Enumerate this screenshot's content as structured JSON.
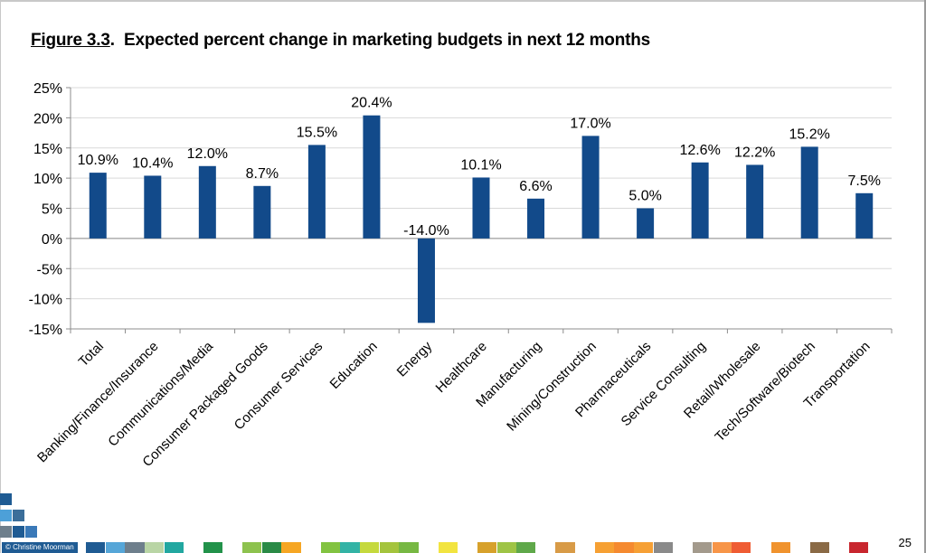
{
  "figure": {
    "label": "Figure 3.3",
    "title": "Expected percent change in marketing budgets in next 12 months"
  },
  "chart_data": {
    "type": "bar",
    "title": "Figure 3.3.  Expected percent change in marketing budgets in next 12 months",
    "xlabel": "",
    "ylabel": "",
    "ylim": [
      -15,
      25
    ],
    "yticks": [
      25,
      20,
      15,
      10,
      5,
      0,
      -5,
      -10,
      -15
    ],
    "ytick_labels": [
      "25%",
      "20%",
      "15%",
      "10%",
      "5%",
      "0%",
      "-5%",
      "-10%",
      "-15%"
    ],
    "grid": true,
    "legend": "none",
    "bar_color": "#124a8a",
    "grid_color": "#d9d9d9",
    "categories": [
      "Total",
      "Banking/Finance/Insurance",
      "Communications/Media",
      "Consumer Packaged Goods",
      "Consumer Services",
      "Education",
      "Energy",
      "Healthcare",
      "Manufacturing",
      "Mining/Construction",
      "Pharmaceuticals",
      "Service Consulting",
      "Retail/Wholesale",
      "Tech/Software/Biotech",
      "Transportation"
    ],
    "values": [
      10.9,
      10.4,
      12.0,
      8.7,
      15.5,
      20.4,
      -14.0,
      10.1,
      6.6,
      17.0,
      5.0,
      12.6,
      12.2,
      15.2,
      7.5
    ],
    "data_labels": [
      "10.9%",
      "10.4%",
      "12.0%",
      "8.7%",
      "15.5%",
      "20.4%",
      "-14.0%",
      "10.1%",
      "6.6%",
      "17.0%",
      "5.0%",
      "12.6%",
      "12.2%",
      "15.2%",
      "7.5%"
    ]
  },
  "footer": {
    "copyright": "© Christine Moorman",
    "page_number": "25",
    "strip_colors": [
      "#1f5b93",
      "#56a6d8",
      "#6e7f8c",
      "#b9d5a5",
      "#22a7a0",
      "#ffffff",
      "#22924a",
      "#ffffff",
      "#8dc24e",
      "#2a8a46",
      "#f6a623",
      "#ffffff",
      "#82c341",
      "#33b3a5",
      "#c5d93d",
      "#a4c43d",
      "#77b843",
      "#ffffff",
      "#f2e440",
      "#ffffff",
      "#d7a12b",
      "#9ec446",
      "#5fa84a",
      "#ffffff",
      "#d89b47",
      "#ffffff",
      "#f6a033",
      "#f58a30",
      "#f6a035",
      "#8a8a8a",
      "#ffffff",
      "#a39a8c",
      "#f79548",
      "#ef5c33",
      "#ffffff",
      "#f0932e",
      "#ffffff",
      "#8a6a46",
      "#ffffff",
      "#c8262e"
    ],
    "corner_colors": [
      "#1f5b93",
      "#4da0d8",
      "#3b6e9a",
      "#6e7f8c",
      "#1f5b93",
      "#3a79b8"
    ]
  }
}
